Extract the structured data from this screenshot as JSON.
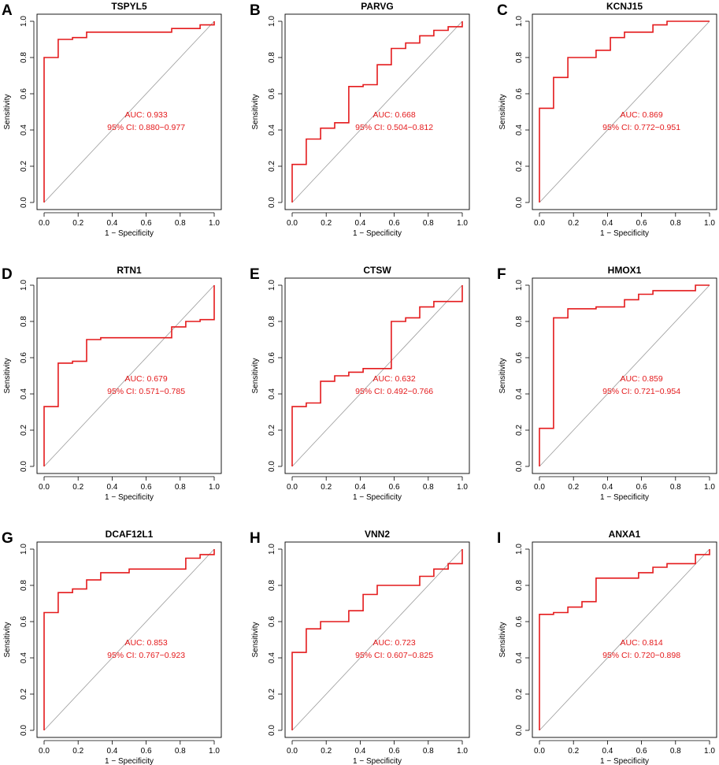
{
  "figure": {
    "panels_layout": "3x3 grid",
    "x_tick_labels": [
      "0.0",
      "0.2",
      "0.4",
      "0.6",
      "0.8",
      "1.0"
    ],
    "y_tick_labels": [
      "0.0",
      "0.2",
      "0.4",
      "0.6",
      "0.8",
      "1.0"
    ],
    "colors": {
      "roc_curve": "#e41a1c",
      "diagonal": "#9a9a9a",
      "axes": "#000000"
    }
  },
  "chart_data": [
    {
      "type": "line",
      "panel": "A",
      "title": "TSPYL5",
      "xlabel": "1 − Specificity",
      "ylabel": "Sensitivity",
      "xlim": [
        0,
        1
      ],
      "ylim": [
        0,
        1
      ],
      "auc_label": "AUC: 0.933",
      "ci_label": "95% CI: 0.880−0.977",
      "series": [
        {
          "name": "ROC",
          "x": [
            0,
            0,
            0.083,
            0.083,
            0.167,
            0.167,
            0.25,
            0.25,
            0.75,
            0.75,
            0.917,
            0.917,
            1,
            1
          ],
          "y": [
            0,
            0.8,
            0.8,
            0.9,
            0.9,
            0.91,
            0.91,
            0.94,
            0.94,
            0.96,
            0.96,
            0.98,
            0.98,
            1.0
          ]
        }
      ]
    },
    {
      "type": "line",
      "panel": "B",
      "title": "PARVG",
      "xlabel": "1 − Specificity",
      "ylabel": "Sensitivity",
      "xlim": [
        0,
        1
      ],
      "ylim": [
        0,
        1
      ],
      "auc_label": "AUC: 0.668",
      "ci_label": "95% CI: 0.504−0.812",
      "series": [
        {
          "name": "ROC",
          "x": [
            0,
            0,
            0.083,
            0.083,
            0.167,
            0.167,
            0.25,
            0.25,
            0.333,
            0.333,
            0.417,
            0.417,
            0.5,
            0.5,
            0.583,
            0.583,
            0.667,
            0.667,
            0.75,
            0.75,
            0.833,
            0.833,
            0.917,
            0.917,
            1,
            1
          ],
          "y": [
            0,
            0.21,
            0.21,
            0.35,
            0.35,
            0.41,
            0.41,
            0.44,
            0.44,
            0.64,
            0.64,
            0.65,
            0.65,
            0.76,
            0.76,
            0.85,
            0.85,
            0.88,
            0.88,
            0.92,
            0.92,
            0.95,
            0.95,
            0.97,
            0.97,
            1.0
          ]
        }
      ]
    },
    {
      "type": "line",
      "panel": "C",
      "title": "KCNJ15",
      "xlabel": "1 − Specificity",
      "ylabel": "Sensitivity",
      "xlim": [
        0,
        1
      ],
      "ylim": [
        0,
        1
      ],
      "auc_label": "AUC: 0.869",
      "ci_label": "95% CI: 0.772−0.951",
      "series": [
        {
          "name": "ROC",
          "x": [
            0,
            0,
            0.083,
            0.083,
            0.167,
            0.167,
            0.333,
            0.333,
            0.417,
            0.417,
            0.5,
            0.5,
            0.667,
            0.667,
            0.75,
            0.75,
            1
          ],
          "y": [
            0,
            0.52,
            0.52,
            0.69,
            0.69,
            0.8,
            0.8,
            0.84,
            0.84,
            0.91,
            0.91,
            0.94,
            0.94,
            0.98,
            0.98,
            1.0,
            1.0
          ]
        }
      ]
    },
    {
      "type": "line",
      "panel": "D",
      "title": "RTN1",
      "xlabel": "1 − Specificity",
      "ylabel": "Sensitivity",
      "xlim": [
        0,
        1
      ],
      "ylim": [
        0,
        1
      ],
      "auc_label": "AUC: 0.679",
      "ci_label": "95% CI: 0.571−0.785",
      "series": [
        {
          "name": "ROC",
          "x": [
            0,
            0,
            0.083,
            0.083,
            0.167,
            0.167,
            0.25,
            0.25,
            0.333,
            0.333,
            0.75,
            0.75,
            0.833,
            0.833,
            0.917,
            0.917,
            1,
            1
          ],
          "y": [
            0,
            0.33,
            0.33,
            0.57,
            0.57,
            0.58,
            0.58,
            0.7,
            0.7,
            0.71,
            0.71,
            0.77,
            0.77,
            0.8,
            0.8,
            0.81,
            0.81,
            1.0
          ]
        }
      ]
    },
    {
      "type": "line",
      "panel": "E",
      "title": "CTSW",
      "xlabel": "1 − Specificity",
      "ylabel": "Sensitivity",
      "xlim": [
        0,
        1
      ],
      "ylim": [
        0,
        1
      ],
      "auc_label": "AUC: 0.632",
      "ci_label": "95% CI: 0.492−0.766",
      "series": [
        {
          "name": "ROC",
          "x": [
            0,
            0,
            0.083,
            0.083,
            0.167,
            0.167,
            0.25,
            0.25,
            0.333,
            0.333,
            0.417,
            0.417,
            0.583,
            0.583,
            0.667,
            0.667,
            0.75,
            0.75,
            0.833,
            0.833,
            1,
            1
          ],
          "y": [
            0,
            0.33,
            0.33,
            0.35,
            0.35,
            0.47,
            0.47,
            0.5,
            0.5,
            0.52,
            0.52,
            0.54,
            0.54,
            0.8,
            0.8,
            0.82,
            0.82,
            0.88,
            0.88,
            0.91,
            0.91,
            1.0
          ]
        }
      ]
    },
    {
      "type": "line",
      "panel": "F",
      "title": "HMOX1",
      "xlabel": "1 − Specificity",
      "ylabel": "Sensitivity",
      "xlim": [
        0,
        1
      ],
      "ylim": [
        0,
        1
      ],
      "auc_label": "AUC: 0.859",
      "ci_label": "95% CI: 0.721−0.954",
      "series": [
        {
          "name": "ROC",
          "x": [
            0,
            0,
            0.083,
            0.083,
            0.167,
            0.167,
            0.333,
            0.333,
            0.5,
            0.5,
            0.583,
            0.583,
            0.667,
            0.667,
            0.917,
            0.917,
            1
          ],
          "y": [
            0,
            0.21,
            0.21,
            0.82,
            0.82,
            0.87,
            0.87,
            0.88,
            0.88,
            0.92,
            0.92,
            0.95,
            0.95,
            0.97,
            0.97,
            1.0,
            1.0
          ]
        }
      ]
    },
    {
      "type": "line",
      "panel": "G",
      "title": "DCAF12L1",
      "xlabel": "1 − Specificity",
      "ylabel": "Sensitivity",
      "xlim": [
        0,
        1
      ],
      "ylim": [
        0,
        1
      ],
      "auc_label": "AUC: 0.853",
      "ci_label": "95% CI: 0.767−0.923",
      "series": [
        {
          "name": "ROC",
          "x": [
            0,
            0,
            0.083,
            0.083,
            0.167,
            0.167,
            0.25,
            0.25,
            0.333,
            0.333,
            0.5,
            0.5,
            0.833,
            0.833,
            0.917,
            0.917,
            1,
            1
          ],
          "y": [
            0,
            0.65,
            0.65,
            0.76,
            0.76,
            0.78,
            0.78,
            0.83,
            0.83,
            0.87,
            0.87,
            0.89,
            0.89,
            0.95,
            0.95,
            0.97,
            0.97,
            1.0
          ]
        }
      ]
    },
    {
      "type": "line",
      "panel": "H",
      "title": "VNN2",
      "xlabel": "1 − Specificity",
      "ylabel": "Sensitivity",
      "xlim": [
        0,
        1
      ],
      "ylim": [
        0,
        1
      ],
      "auc_label": "AUC: 0.723",
      "ci_label": "95% CI: 0.607−0.825",
      "series": [
        {
          "name": "ROC",
          "x": [
            0,
            0,
            0.083,
            0.083,
            0.167,
            0.167,
            0.333,
            0.333,
            0.417,
            0.417,
            0.5,
            0.5,
            0.75,
            0.75,
            0.833,
            0.833,
            0.917,
            0.917,
            1,
            1
          ],
          "y": [
            0,
            0.43,
            0.43,
            0.56,
            0.56,
            0.6,
            0.6,
            0.66,
            0.66,
            0.75,
            0.75,
            0.8,
            0.8,
            0.85,
            0.85,
            0.89,
            0.89,
            0.92,
            0.92,
            1.0
          ]
        }
      ]
    },
    {
      "type": "line",
      "panel": "I",
      "title": "ANXA1",
      "xlabel": "1 − Specificity",
      "ylabel": "Sensitivity",
      "xlim": [
        0,
        1
      ],
      "ylim": [
        0,
        1
      ],
      "auc_label": "AUC: 0.814",
      "ci_label": "95% CI: 0.720−0.898",
      "series": [
        {
          "name": "ROC",
          "x": [
            0,
            0,
            0.083,
            0.083,
            0.167,
            0.167,
            0.25,
            0.25,
            0.333,
            0.333,
            0.583,
            0.583,
            0.667,
            0.667,
            0.75,
            0.75,
            0.917,
            0.917,
            1,
            1
          ],
          "y": [
            0,
            0.64,
            0.64,
            0.65,
            0.65,
            0.68,
            0.68,
            0.71,
            0.71,
            0.84,
            0.84,
            0.87,
            0.87,
            0.9,
            0.9,
            0.92,
            0.92,
            0.97,
            0.97,
            1.0
          ]
        }
      ]
    }
  ]
}
